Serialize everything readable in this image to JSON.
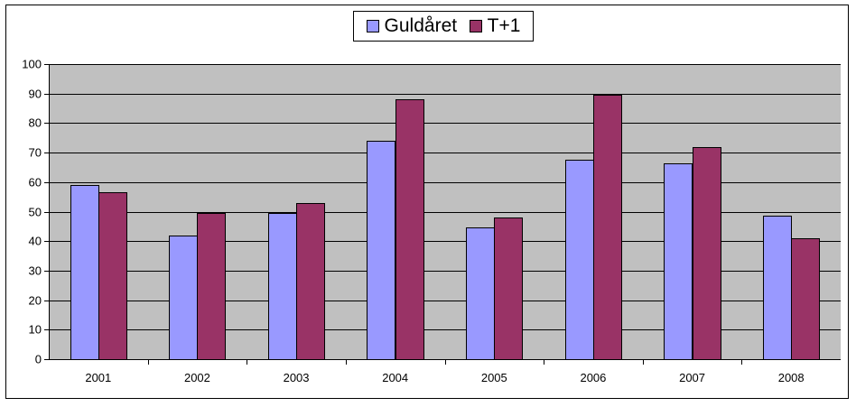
{
  "chart_data": {
    "type": "bar",
    "categories": [
      "2001",
      "2002",
      "2003",
      "2004",
      "2005",
      "2006",
      "2007",
      "2008"
    ],
    "series": [
      {
        "name": "Guldåret",
        "color": "#9999ff",
        "values": [
          59,
          42,
          49.5,
          74,
          44.5,
          67.5,
          66.5,
          48.5
        ]
      },
      {
        "name": "T+1",
        "color": "#993366",
        "values": [
          56.5,
          49.5,
          53,
          88,
          48,
          89.5,
          72,
          41
        ]
      }
    ],
    "ylim": [
      0,
      100
    ],
    "yticks": [
      0,
      10,
      20,
      30,
      40,
      50,
      60,
      70,
      80,
      90,
      100
    ],
    "grid": true,
    "plot_background": "#c0c0c0",
    "legend_position": "top-center"
  }
}
